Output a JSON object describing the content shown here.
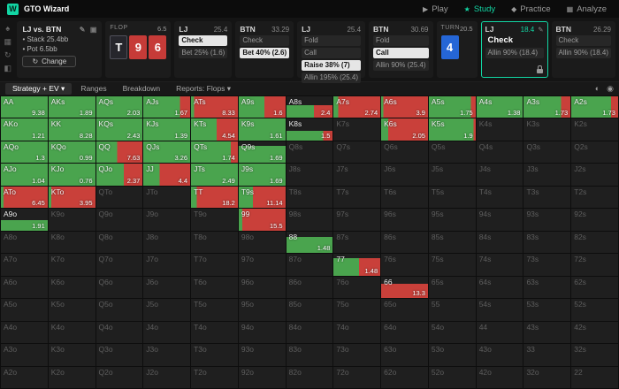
{
  "top_bar": {
    "logo_letter": "W",
    "app_name": "GTO Wizard",
    "nav": [
      {
        "name": "play",
        "label": "Play",
        "icon": "▶",
        "active": false
      },
      {
        "name": "study",
        "label": "Study",
        "icon": "★",
        "active": true
      },
      {
        "name": "practice",
        "label": "Practice",
        "icon": "◆",
        "active": false
      },
      {
        "name": "analyze",
        "label": "Analyze",
        "icon": "▦",
        "active": false
      }
    ]
  },
  "side_strip": {
    "icons": [
      {
        "name": "cards-icon",
        "glyph": "♠"
      },
      {
        "name": "solutions-icon",
        "glyph": "▦"
      },
      {
        "name": "history-icon",
        "glyph": "↻"
      },
      {
        "name": "settings-icon",
        "glyph": "◧"
      }
    ]
  },
  "game_info": {
    "title": "LJ vs. BTN",
    "stack_line": "Stack 25.4bb",
    "pot_line": "Pot 6.5bb",
    "change_label": "Change",
    "edit_icon": "✎",
    "popout_icon": "▣",
    "refresh_icon": "↻"
  },
  "board": {
    "flop_label": "FLOP",
    "flop_pot": "6.5",
    "flop_cards": [
      {
        "rank": "T",
        "color": "dark"
      },
      {
        "rank": "9",
        "color": "red"
      },
      {
        "rank": "6",
        "color": "red"
      }
    ],
    "turn_label": "TURN",
    "turn_pot": "20.5",
    "turn_card": {
      "rank": "4",
      "color": "blue"
    }
  },
  "action_panels": [
    {
      "player": "LJ",
      "stack": "25.4",
      "active": false,
      "actions": [
        {
          "label": "Check",
          "style": "selected"
        },
        {
          "label": "Bet 25% (1.6)",
          "style": "plain"
        }
      ]
    },
    {
      "player": "BTN",
      "stack": "33.29",
      "active": false,
      "actions": [
        {
          "label": "Check",
          "style": "plain"
        },
        {
          "label": "Bet 40% (2.6)",
          "style": "selected"
        }
      ]
    },
    {
      "player": "LJ",
      "stack": "25.4",
      "active": false,
      "actions": [
        {
          "label": "Fold",
          "style": "plain"
        },
        {
          "label": "Call",
          "style": "plain"
        },
        {
          "label": "Raise 38% (7)",
          "style": "selected"
        },
        {
          "label": "Allin 195% (25.4)",
          "style": "plain"
        }
      ]
    },
    {
      "player": "BTN",
      "stack": "30.69",
      "active": false,
      "actions": [
        {
          "label": "Fold",
          "style": "plain"
        },
        {
          "label": "Call",
          "style": "selected"
        },
        {
          "label": "Allin 90% (25.4)",
          "style": "plain"
        }
      ]
    },
    {
      "player": "LJ",
      "stack": "18.4",
      "active": true,
      "edit_icon": "✎",
      "lock": true,
      "actions": [
        {
          "label": "Check",
          "style": "current"
        },
        {
          "label": "Allin 90% (18.4)",
          "style": "plain"
        }
      ]
    },
    {
      "player": "BTN",
      "stack": "26.29",
      "active": false,
      "actions": [
        {
          "label": "Check",
          "style": "plain"
        },
        {
          "label": "Allin 90% (18.4)",
          "style": "plain"
        }
      ]
    }
  ],
  "toolbar": {
    "caret_glyph": "▾",
    "tabs": [
      {
        "label": "Strategy + EV",
        "caret": true,
        "active": true
      },
      {
        "label": "Ranges",
        "caret": false,
        "active": false
      },
      {
        "label": "Breakdown",
        "caret": false,
        "active": false
      },
      {
        "label": "Reports: Flops",
        "caret": true,
        "active": false
      }
    ],
    "right_icons": [
      {
        "name": "display-mode-icon",
        "glyph": "◐"
      },
      {
        "name": "color-settings-icon",
        "glyph": "◉"
      }
    ]
  },
  "chart_data": {
    "type": "heatmap",
    "title": "13x13 preflop hand matrix, LJ strategy on turn (green = Check, red = Allin 90%), EV shown per hand",
    "legend": {
      "green": "Check",
      "red": "Allin 90%"
    },
    "colors": {
      "green": "#4aa44e",
      "red": "#c9403a",
      "inactive": "#1f1f1f"
    },
    "cell_format": [
      "hand",
      "ev",
      "green_fraction",
      "fill_height_fraction"
    ],
    "rows": [
      [
        [
          "AA",
          "9.38",
          1,
          1
        ],
        [
          "AKs",
          "1.89",
          1,
          1
        ],
        [
          "AQs",
          "2.03",
          1,
          1
        ],
        [
          "AJs",
          "1.67",
          0.78,
          1
        ],
        [
          "ATs",
          "8.33",
          0.07,
          1
        ],
        [
          "A9s",
          "1.6",
          0.55,
          1
        ],
        [
          "A8s",
          "2.4",
          0.6,
          0.6
        ],
        [
          "A7s",
          "2.74",
          0.1,
          1
        ],
        [
          "A6s",
          "3.9",
          0.05,
          1
        ],
        [
          "A5s",
          "1.75",
          0.9,
          1
        ],
        [
          "A4s",
          "1.38",
          1,
          1
        ],
        [
          "A3s",
          "1.73",
          0.8,
          1
        ],
        [
          "A2s",
          "1.73",
          0.85,
          1
        ]
      ],
      [
        [
          "AKo",
          "1.21",
          1,
          1
        ],
        [
          "KK",
          "8.28",
          1,
          1
        ],
        [
          "KQs",
          "2.43",
          1,
          1
        ],
        [
          "KJs",
          "1.39",
          1,
          1
        ],
        [
          "KTs",
          "4.54",
          0.55,
          1
        ],
        [
          "K9s",
          "1.61",
          1,
          1
        ],
        [
          "K8s",
          "1.5",
          0.8,
          0.45
        ],
        [
          "K7s"
        ],
        [
          "K6s",
          "2.05",
          0.15,
          1
        ],
        [
          "K5s",
          "1.9",
          0.95,
          1
        ],
        [
          "K4s"
        ],
        [
          "K3s"
        ],
        [
          "K2s"
        ]
      ],
      [
        [
          "AQo",
          "1.3",
          1,
          1
        ],
        [
          "KQo",
          "0.99",
          1,
          1
        ],
        [
          "QQ",
          "7.63",
          0.45,
          1
        ],
        [
          "QJs",
          "3.26",
          1,
          1
        ],
        [
          "QTs",
          "1.74",
          0.85,
          1
        ],
        [
          "Q9s",
          "1.69",
          1,
          0.8
        ],
        [
          "Q8s"
        ],
        [
          "Q7s"
        ],
        [
          "Q6s"
        ],
        [
          "Q5s"
        ],
        [
          "Q4s"
        ],
        [
          "Q3s"
        ],
        [
          "Q2s"
        ]
      ],
      [
        [
          "AJo",
          "1.04",
          1,
          1
        ],
        [
          "KJo",
          "0.76",
          1,
          1
        ],
        [
          "QJo",
          "2.37",
          0.6,
          1
        ],
        [
          "JJ",
          "4.4",
          0.35,
          1
        ],
        [
          "JTs",
          "2.49",
          1,
          1
        ],
        [
          "J9s",
          "1.69",
          1,
          1
        ],
        [
          "J8s"
        ],
        [
          "J7s"
        ],
        [
          "J6s"
        ],
        [
          "J5s"
        ],
        [
          "J4s"
        ],
        [
          "J3s"
        ],
        [
          "J2s"
        ]
      ],
      [
        [
          "ATo",
          "6.45",
          0.06,
          1
        ],
        [
          "KTo",
          "3.95",
          0.06,
          1
        ],
        [
          "QTo"
        ],
        [
          "JTo"
        ],
        [
          "TT",
          "18.2",
          0.12,
          1
        ],
        [
          "T9s",
          "11.14",
          0.3,
          1
        ],
        [
          "T8s"
        ],
        [
          "T7s"
        ],
        [
          "T6s"
        ],
        [
          "T5s"
        ],
        [
          "T4s"
        ],
        [
          "T3s"
        ],
        [
          "T2s"
        ]
      ],
      [
        [
          "A9o",
          "1.91",
          1,
          0.5
        ],
        [
          "K9o"
        ],
        [
          "Q9o"
        ],
        [
          "J9o"
        ],
        [
          "T9o"
        ],
        [
          "99",
          "15.5",
          0.08,
          1
        ],
        [
          "98s"
        ],
        [
          "97s"
        ],
        [
          "96s"
        ],
        [
          "95s"
        ],
        [
          "94s"
        ],
        [
          "93s"
        ],
        [
          "92s"
        ]
      ],
      [
        [
          "A8o"
        ],
        [
          "K8o"
        ],
        [
          "Q8o"
        ],
        [
          "J8o"
        ],
        [
          "T8o"
        ],
        [
          "98o"
        ],
        [
          "88",
          "1.48",
          1,
          0.75
        ],
        [
          "87s"
        ],
        [
          "86s"
        ],
        [
          "85s"
        ],
        [
          "84s"
        ],
        [
          "83s"
        ],
        [
          "82s"
        ]
      ],
      [
        [
          "A7o"
        ],
        [
          "K7o"
        ],
        [
          "Q7o"
        ],
        [
          "J7o"
        ],
        [
          "T7o"
        ],
        [
          "97o"
        ],
        [
          "87o"
        ],
        [
          "77",
          "1.48",
          0.55,
          0.8
        ],
        [
          "76s"
        ],
        [
          "75s"
        ],
        [
          "74s"
        ],
        [
          "73s"
        ],
        [
          "72s"
        ]
      ],
      [
        [
          "A6o"
        ],
        [
          "K6o"
        ],
        [
          "Q6o"
        ],
        [
          "J6o"
        ],
        [
          "T6o"
        ],
        [
          "96o"
        ],
        [
          "86o"
        ],
        [
          "76o"
        ],
        [
          "66",
          "13.3",
          0,
          0.65
        ],
        [
          "65s"
        ],
        [
          "64s"
        ],
        [
          "63s"
        ],
        [
          "62s"
        ]
      ],
      [
        [
          "A5o"
        ],
        [
          "K5o"
        ],
        [
          "Q5o"
        ],
        [
          "J5o"
        ],
        [
          "T5o"
        ],
        [
          "95o"
        ],
        [
          "85o"
        ],
        [
          "75o"
        ],
        [
          "65o"
        ],
        [
          "55"
        ],
        [
          "54s"
        ],
        [
          "53s"
        ],
        [
          "52s"
        ]
      ],
      [
        [
          "A4o"
        ],
        [
          "K4o"
        ],
        [
          "Q4o"
        ],
        [
          "J4o"
        ],
        [
          "T4o"
        ],
        [
          "94o"
        ],
        [
          "84o"
        ],
        [
          "74o"
        ],
        [
          "64o"
        ],
        [
          "54o"
        ],
        [
          "44"
        ],
        [
          "43s"
        ],
        [
          "42s"
        ]
      ],
      [
        [
          "A3o"
        ],
        [
          "K3o"
        ],
        [
          "Q3o"
        ],
        [
          "J3o"
        ],
        [
          "T3o"
        ],
        [
          "93o"
        ],
        [
          "83o"
        ],
        [
          "73o"
        ],
        [
          "63o"
        ],
        [
          "53o"
        ],
        [
          "43o"
        ],
        [
          "33"
        ],
        [
          "32s"
        ]
      ],
      [
        [
          "A2o"
        ],
        [
          "K2o"
        ],
        [
          "Q2o"
        ],
        [
          "J2o"
        ],
        [
          "T2o"
        ],
        [
          "92o"
        ],
        [
          "82o"
        ],
        [
          "72o"
        ],
        [
          "62o"
        ],
        [
          "52o"
        ],
        [
          "42o"
        ],
        [
          "32o"
        ],
        [
          "22"
        ]
      ]
    ]
  }
}
